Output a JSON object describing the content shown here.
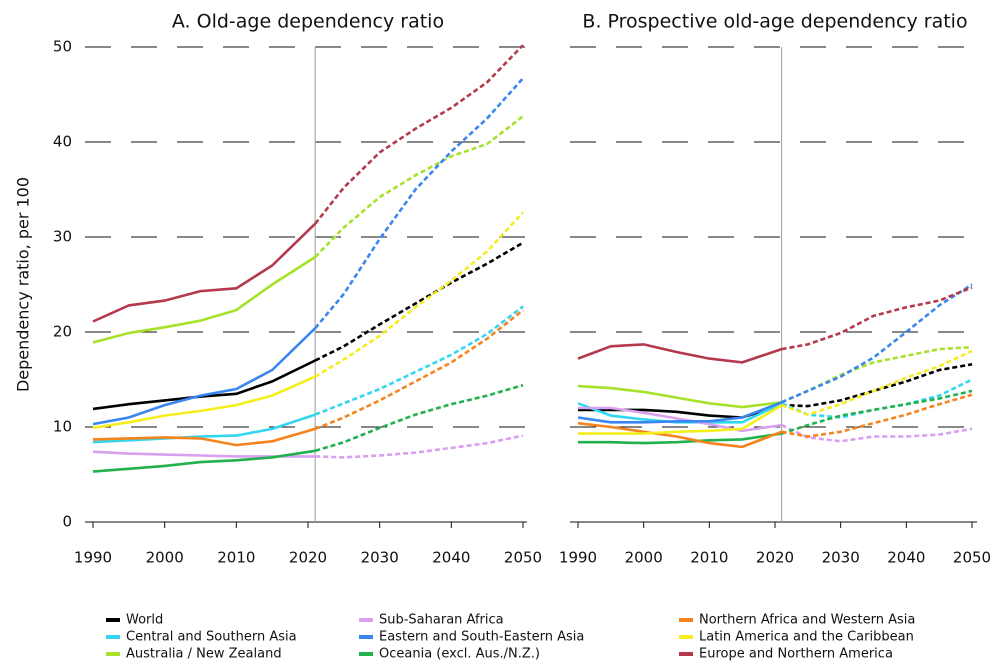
{
  "chart_data": [
    {
      "type": "line",
      "title": "A. Old-age dependency ratio",
      "ylabel": "Dependency ratio, per 100",
      "x": [
        1990,
        1995,
        2000,
        2005,
        2010,
        2015,
        2021,
        2025,
        2030,
        2035,
        2040,
        2045,
        2050
      ],
      "projection_start": 2021,
      "xlim": [
        1990,
        2050
      ],
      "xticks": [
        1990,
        2000,
        2010,
        2020,
        2030,
        2040,
        2050
      ],
      "ylim": [
        0,
        50
      ],
      "yticks": [
        0,
        10,
        20,
        30,
        40,
        50
      ],
      "grid": true,
      "series": [
        {
          "name": "World",
          "color": "#000000",
          "values": [
            11.9,
            12.4,
            12.8,
            13.2,
            13.5,
            14.8,
            17,
            18.5,
            20.8,
            23,
            25.2,
            27.2,
            29.4
          ]
        },
        {
          "name": "Central and Southern Asia",
          "color": "#33d6f0",
          "values": [
            8.4,
            8.6,
            8.8,
            9.0,
            9.1,
            9.8,
            11.3,
            12.5,
            14.0,
            15.8,
            17.6,
            19.8,
            22.7
          ]
        },
        {
          "name": "Australia / New Zealand",
          "color": "#a6e22a",
          "values": [
            18.9,
            19.9,
            20.5,
            21.2,
            22.3,
            25,
            27.9,
            31,
            34.2,
            36.5,
            38.5,
            39.8,
            42.7
          ]
        },
        {
          "name": "Sub-Saharan Africa",
          "color": "#d9a0f0",
          "values": [
            7.4,
            7.2,
            7.1,
            7.0,
            6.9,
            6.9,
            6.9,
            6.8,
            7.0,
            7.3,
            7.8,
            8.3,
            9.1
          ]
        },
        {
          "name": "Eastern and South-Eastern Asia",
          "color": "#3a86f0",
          "values": [
            10.3,
            11.0,
            12.3,
            13.3,
            14.0,
            16,
            20.4,
            24,
            29.8,
            35,
            39,
            42.5,
            46.7
          ]
        },
        {
          "name": "Oceania (excl. Aus./N.Z.)",
          "color": "#22b14c",
          "values": [
            5.3,
            5.6,
            5.9,
            6.3,
            6.5,
            6.8,
            7.5,
            8.4,
            9.9,
            11.3,
            12.4,
            13.3,
            14.4
          ]
        },
        {
          "name": "Northern Africa and Western Asia",
          "color": "#f5841f",
          "values": [
            8.7,
            8.8,
            8.9,
            8.8,
            8.1,
            8.5,
            9.8,
            11.0,
            12.8,
            14.8,
            16.8,
            19.3,
            22.3
          ]
        },
        {
          "name": "Latin America and the Caribbean",
          "color": "#f5ee1b",
          "values": [
            9.9,
            10.5,
            11.2,
            11.7,
            12.3,
            13.3,
            15.3,
            17.1,
            19.6,
            22.6,
            25.4,
            28.5,
            32.6
          ]
        },
        {
          "name": "Europe and Northern America",
          "color": "#b5394c",
          "values": [
            21.1,
            22.8,
            23.3,
            24.3,
            24.6,
            27,
            31.4,
            35.2,
            38.9,
            41.4,
            43.6,
            46.3,
            50.2
          ]
        }
      ]
    },
    {
      "type": "line",
      "title": "B. Prospective old-age dependency ratio",
      "x": [
        1990,
        1995,
        2000,
        2005,
        2010,
        2015,
        2021,
        2025,
        2030,
        2035,
        2040,
        2045,
        2050
      ],
      "projection_start": 2021,
      "xlim": [
        1990,
        2050
      ],
      "xticks": [
        1990,
        2000,
        2010,
        2020,
        2030,
        2040,
        2050
      ],
      "ylim": [
        0,
        50
      ],
      "yticks": [
        0,
        10,
        20,
        30,
        40,
        50
      ],
      "grid": true,
      "series": [
        {
          "name": "World",
          "color": "#000000",
          "values": [
            11.8,
            11.8,
            11.8,
            11.6,
            11.2,
            11.0,
            12.3,
            12.2,
            12.8,
            13.8,
            14.8,
            16.0,
            16.6
          ]
        },
        {
          "name": "Central and Southern Asia",
          "color": "#33d6f0",
          "values": [
            12.5,
            11.2,
            10.8,
            10.5,
            10.5,
            10.5,
            12.5,
            11.3,
            11.0,
            11.8,
            12.4,
            13.3,
            15.0
          ]
        },
        {
          "name": "Australia / New Zealand",
          "color": "#a6e22a",
          "values": [
            14.3,
            14.1,
            13.7,
            13.1,
            12.5,
            12.1,
            12.6,
            13.8,
            15.5,
            16.8,
            17.5,
            18.2,
            18.4
          ]
        },
        {
          "name": "Sub-Saharan Africa",
          "color": "#d9a0f0",
          "values": [
            12.0,
            12.0,
            11.5,
            10.9,
            10.3,
            9.6,
            10.2,
            8.9,
            8.5,
            9.0,
            9.0,
            9.2,
            9.8
          ]
        },
        {
          "name": "Eastern and South-Eastern Asia",
          "color": "#3a86f0",
          "values": [
            11.0,
            10.5,
            10.5,
            10.6,
            10.6,
            11.0,
            12.6,
            13.8,
            15.3,
            17.3,
            20.0,
            22.8,
            25.0
          ]
        },
        {
          "name": "Oceania (excl. Aus./N.Z.)",
          "color": "#22b14c",
          "values": [
            8.4,
            8.4,
            8.3,
            8.4,
            8.6,
            8.7,
            9.3,
            10.2,
            11.2,
            11.8,
            12.4,
            13.0,
            13.8
          ]
        },
        {
          "name": "Northern Africa and Western Asia",
          "color": "#f5841f",
          "values": [
            10.4,
            10.0,
            9.5,
            9.0,
            8.3,
            7.9,
            9.5,
            9.0,
            9.5,
            10.4,
            11.3,
            12.4,
            13.4
          ]
        },
        {
          "name": "Latin America and the Caribbean",
          "color": "#f5ee1b",
          "values": [
            9.3,
            9.3,
            9.3,
            9.5,
            9.6,
            9.8,
            12.3,
            11.3,
            12.4,
            13.8,
            15.2,
            16.4,
            18.0
          ]
        },
        {
          "name": "Europe and Northern America",
          "color": "#b5394c",
          "values": [
            17.2,
            18.5,
            18.7,
            17.9,
            17.2,
            16.8,
            18.2,
            18.7,
            19.9,
            21.7,
            22.6,
            23.3,
            24.7
          ]
        }
      ]
    }
  ]
}
